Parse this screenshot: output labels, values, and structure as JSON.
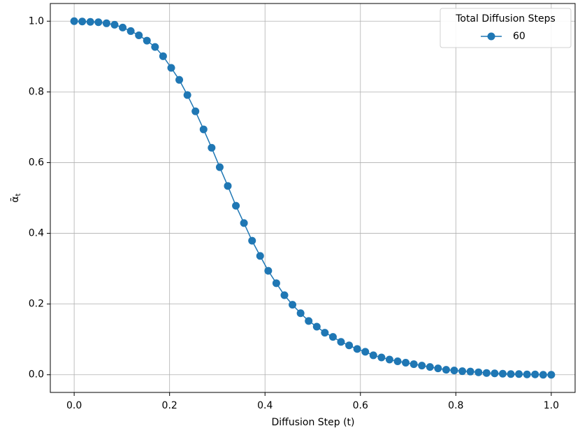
{
  "chart_data": {
    "type": "line",
    "xlabel": "Diffusion Step (t)",
    "ylabel": "ᾱt",
    "legend_title": "Total Diffusion Steps",
    "legend": "upper right",
    "grid": true,
    "x": [
      0,
      0.0169,
      0.0339,
      0.0508,
      0.0678,
      0.0847,
      0.1017,
      0.1186,
      0.1356,
      0.1525,
      0.1695,
      0.1864,
      0.2034,
      0.2203,
      0.2373,
      0.2542,
      0.2712,
      0.2881,
      0.3051,
      0.322,
      0.339,
      0.3559,
      0.3729,
      0.3898,
      0.4068,
      0.4237,
      0.4407,
      0.4576,
      0.4746,
      0.4915,
      0.5085,
      0.5254,
      0.5424,
      0.5593,
      0.5763,
      0.5932,
      0.6102,
      0.6271,
      0.6441,
      0.661,
      0.678,
      0.6949,
      0.7119,
      0.7288,
      0.7458,
      0.7627,
      0.7797,
      0.7966,
      0.8136,
      0.8305,
      0.8475,
      0.8644,
      0.8814,
      0.8983,
      0.9153,
      0.9322,
      0.9492,
      0.9661,
      0.9831,
      1.0
    ],
    "series": [
      {
        "name": "60",
        "color": "#1f77b4",
        "values": [
          1.0,
          0.999,
          0.998,
          0.997,
          0.994,
          0.99,
          0.982,
          0.972,
          0.96,
          0.945,
          0.927,
          0.901,
          0.868,
          0.834,
          0.791,
          0.745,
          0.694,
          0.642,
          0.587,
          0.534,
          0.478,
          0.429,
          0.379,
          0.336,
          0.294,
          0.259,
          0.225,
          0.198,
          0.174,
          0.152,
          0.136,
          0.119,
          0.107,
          0.093,
          0.083,
          0.073,
          0.065,
          0.055,
          0.049,
          0.043,
          0.038,
          0.034,
          0.03,
          0.026,
          0.022,
          0.018,
          0.014,
          0.012,
          0.01,
          0.009,
          0.007,
          0.005,
          0.004,
          0.003,
          0.002,
          0.002,
          0.001,
          0.001,
          0.0,
          0.0
        ]
      }
    ],
    "xlim": [
      -0.05,
      1.05
    ],
    "ylim": [
      -0.05,
      1.05
    ],
    "xticks": [
      {
        "value": 0,
        "label": "0.0"
      },
      0.2,
      0.4,
      0.6,
      0.8,
      {
        "value": 1,
        "label": "1.0"
      }
    ],
    "yticks": [
      {
        "value": 0,
        "label": "0.0"
      },
      0.2,
      0.4,
      0.6,
      0.8,
      {
        "value": 1,
        "label": "1.0"
      }
    ]
  }
}
